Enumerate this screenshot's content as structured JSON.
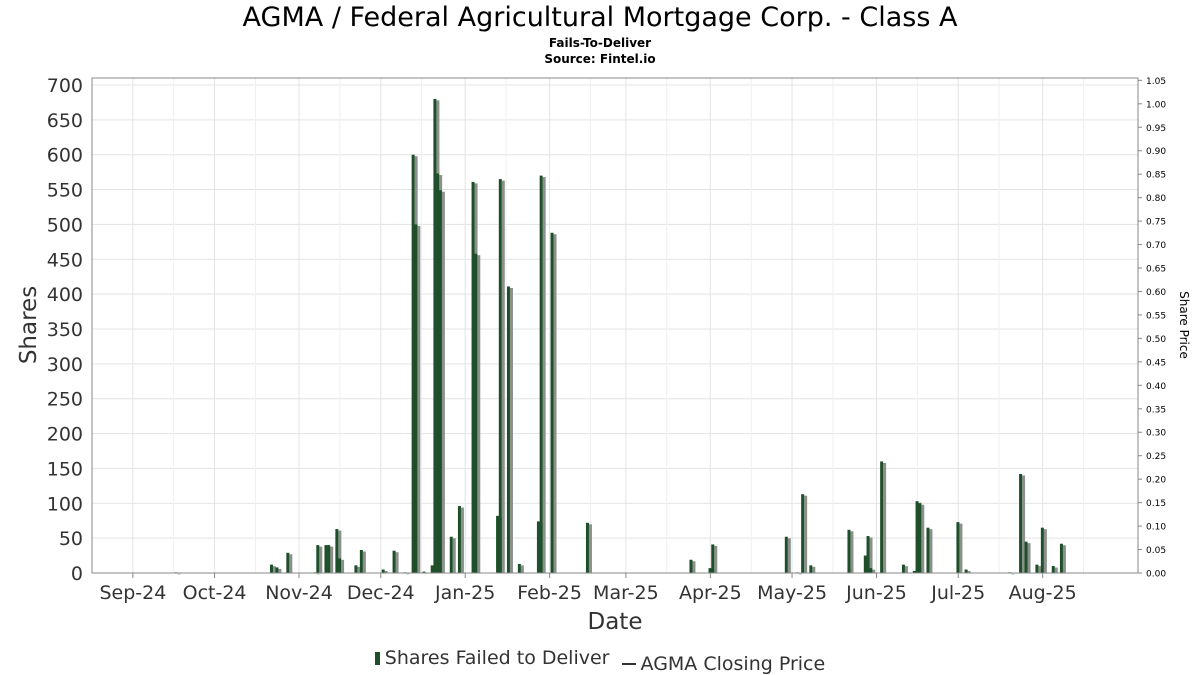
{
  "title": "AGMA / Federal Agricultural Mortgage Corp. - Class A",
  "subtitle": "Fails-To-Deliver",
  "source": "Source: Fintel.io",
  "legend": {
    "bars": "Shares Failed to Deliver",
    "line": "AGMA Closing Price"
  },
  "colors": {
    "bar_fill": "#1f4f2a",
    "bar_shadow": "#8a918b",
    "grid": "#e3e3e3",
    "axis": "#888888"
  },
  "chart_data": {
    "type": "bar",
    "title": "AGMA / Federal Agricultural Mortgage Corp. - Class A",
    "xlabel": "Date",
    "ylabel": "Shares",
    "y2label": "Share Price",
    "ylim": [
      0,
      710
    ],
    "y2lim": [
      0,
      1.055
    ],
    "grid": true,
    "legend_position": "bottom",
    "yticks": [
      "0",
      "50",
      "100",
      "150",
      "200",
      "250",
      "300",
      "350",
      "400",
      "450",
      "500",
      "550",
      "600",
      "650",
      "700"
    ],
    "y2ticks": [
      "0.00",
      "0.05",
      "0.10",
      "0.15",
      "0.20",
      "0.25",
      "0.30",
      "0.35",
      "0.40",
      "0.45",
      "0.50",
      "0.55",
      "0.60",
      "0.65",
      "0.70",
      "0.75",
      "0.80",
      "0.85",
      "0.90",
      "0.95",
      "1.00",
      "1.05"
    ],
    "xticks": [
      {
        "label": "Sep-24",
        "date": "2024-09-01"
      },
      {
        "label": "Oct-24",
        "date": "2024-10-01"
      },
      {
        "label": "Nov-24",
        "date": "2024-11-01"
      },
      {
        "label": "Dec-24",
        "date": "2024-12-01"
      },
      {
        "label": "Jan-25",
        "date": "2025-01-01"
      },
      {
        "label": "Feb-25",
        "date": "2025-02-01"
      },
      {
        "label": "Mar-25",
        "date": "2025-03-01"
      },
      {
        "label": "Apr-25",
        "date": "2025-04-01"
      },
      {
        "label": "May-25",
        "date": "2025-05-01"
      },
      {
        "label": "Jun-25",
        "date": "2025-06-01"
      },
      {
        "label": "Jul-25",
        "date": "2025-07-01"
      },
      {
        "label": "Aug-25",
        "date": "2025-08-01"
      }
    ],
    "series": [
      {
        "name": "Shares Failed to Deliver",
        "points": [
          {
            "date": "2024-09-17",
            "value": 1
          },
          {
            "date": "2024-10-22",
            "value": 12
          },
          {
            "date": "2024-10-24",
            "value": 8
          },
          {
            "date": "2024-10-28",
            "value": 29
          },
          {
            "date": "2024-11-07",
            "value": 1
          },
          {
            "date": "2024-11-08",
            "value": 40
          },
          {
            "date": "2024-11-11",
            "value": 40
          },
          {
            "date": "2024-11-12",
            "value": 40
          },
          {
            "date": "2024-11-15",
            "value": 63
          },
          {
            "date": "2024-11-16",
            "value": 21
          },
          {
            "date": "2024-11-22",
            "value": 11
          },
          {
            "date": "2024-11-24",
            "value": 33
          },
          {
            "date": "2024-12-02",
            "value": 5
          },
          {
            "date": "2024-12-06",
            "value": 32
          },
          {
            "date": "2024-12-10",
            "value": 1
          },
          {
            "date": "2024-12-13",
            "value": 600
          },
          {
            "date": "2024-12-14",
            "value": 500
          },
          {
            "date": "2024-12-17",
            "value": 2
          },
          {
            "date": "2024-12-20",
            "value": 11
          },
          {
            "date": "2024-12-21",
            "value": 680
          },
          {
            "date": "2024-12-22",
            "value": 573
          },
          {
            "date": "2024-12-23",
            "value": 549
          },
          {
            "date": "2024-12-27",
            "value": 52
          },
          {
            "date": "2024-12-30",
            "value": 96
          },
          {
            "date": "2025-01-04",
            "value": 561
          },
          {
            "date": "2025-01-05",
            "value": 458
          },
          {
            "date": "2025-01-13",
            "value": 82
          },
          {
            "date": "2025-01-14",
            "value": 565
          },
          {
            "date": "2025-01-17",
            "value": 411
          },
          {
            "date": "2025-01-21",
            "value": 13
          },
          {
            "date": "2025-01-28",
            "value": 74
          },
          {
            "date": "2025-01-29",
            "value": 570
          },
          {
            "date": "2025-02-02",
            "value": 488
          },
          {
            "date": "2025-02-15",
            "value": 72
          },
          {
            "date": "2025-03-25",
            "value": 19
          },
          {
            "date": "2025-04-01",
            "value": 7
          },
          {
            "date": "2025-04-02",
            "value": 41
          },
          {
            "date": "2025-04-29",
            "value": 52
          },
          {
            "date": "2025-05-03",
            "value": 1
          },
          {
            "date": "2025-05-05",
            "value": 113
          },
          {
            "date": "2025-05-08",
            "value": 11
          },
          {
            "date": "2025-05-22",
            "value": 62
          },
          {
            "date": "2025-05-28",
            "value": 25
          },
          {
            "date": "2025-05-29",
            "value": 53
          },
          {
            "date": "2025-05-30",
            "value": 7
          },
          {
            "date": "2025-06-03",
            "value": 160
          },
          {
            "date": "2025-06-11",
            "value": 12
          },
          {
            "date": "2025-06-15",
            "value": 3
          },
          {
            "date": "2025-06-16",
            "value": 103
          },
          {
            "date": "2025-06-17",
            "value": 100
          },
          {
            "date": "2025-06-20",
            "value": 65
          },
          {
            "date": "2025-07-01",
            "value": 73
          },
          {
            "date": "2025-07-04",
            "value": 5
          },
          {
            "date": "2025-07-20",
            "value": 1
          },
          {
            "date": "2025-07-24",
            "value": 142
          },
          {
            "date": "2025-07-26",
            "value": 45
          },
          {
            "date": "2025-07-30",
            "value": 12
          },
          {
            "date": "2025-08-01",
            "value": 65
          },
          {
            "date": "2025-08-05",
            "value": 10
          },
          {
            "date": "2025-08-08",
            "value": 42
          }
        ]
      }
    ]
  }
}
